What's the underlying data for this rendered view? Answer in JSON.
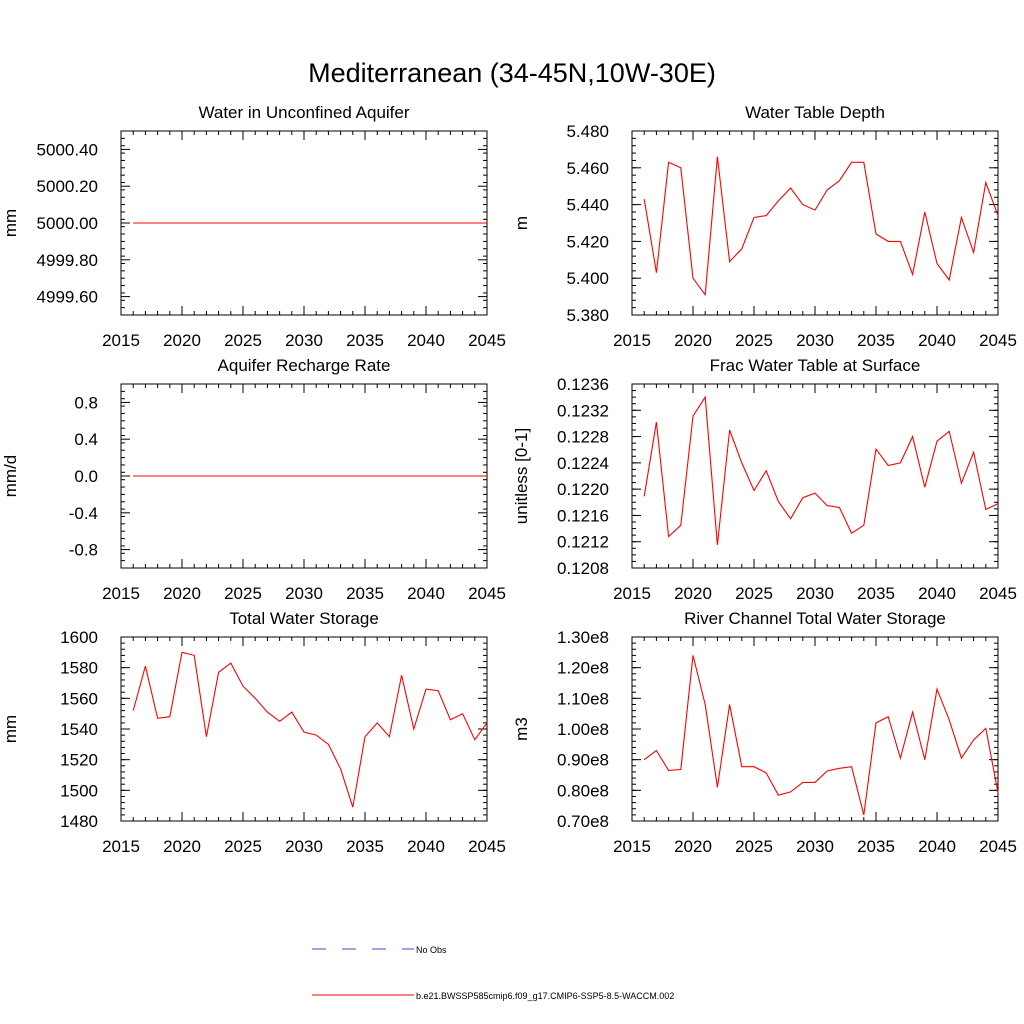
{
  "figure": {
    "title": "Mediterranean (34-45N,10W-30E)"
  },
  "legend": {
    "entries": [
      {
        "label": "No Obs",
        "color": "#3a4fc4",
        "style": "dashed"
      },
      {
        "label": "b.e21.BWSSP585cmip6.f09_g17.CMIP6-SSP5-8.5-WACCM.002",
        "color": "#ff0000",
        "style": "solid"
      }
    ]
  },
  "chart_data": [
    {
      "type": "line",
      "title": "Water in Unconfined Aquifer",
      "ylabel": "mm",
      "xlim": [
        2015,
        2045
      ],
      "ylim": [
        4999.5,
        5000.5
      ],
      "xticks": [
        2015,
        2020,
        2025,
        2030,
        2035,
        2040,
        2045
      ],
      "yticks": [
        4999.6,
        4999.8,
        5000.0,
        5000.2,
        5000.4
      ],
      "ytick_labels": [
        "4999.60",
        "4999.80",
        "5000.00",
        "5000.20",
        "5000.40"
      ],
      "minor_ystep": 0.04,
      "series": [
        {
          "color": "#ff0000",
          "x": [
            2016,
            2045
          ],
          "values": [
            5000.0,
            5000.0
          ]
        }
      ]
    },
    {
      "type": "line",
      "title": "Water Table Depth",
      "ylabel": "m",
      "xlim": [
        2015,
        2045
      ],
      "ylim": [
        5.38,
        5.48
      ],
      "xticks": [
        2015,
        2020,
        2025,
        2030,
        2035,
        2040,
        2045
      ],
      "yticks": [
        5.38,
        5.4,
        5.42,
        5.44,
        5.46,
        5.48
      ],
      "ytick_labels": [
        "5.380",
        "5.400",
        "5.420",
        "5.440",
        "5.460",
        "5.480"
      ],
      "minor_ystep": 0.004,
      "series": [
        {
          "color": "#ff0000",
          "x": [
            2016,
            2017,
            2018,
            2019,
            2020,
            2021,
            2022,
            2023,
            2024,
            2025,
            2026,
            2027,
            2028,
            2029,
            2030,
            2031,
            2032,
            2033,
            2034,
            2035,
            2036,
            2037,
            2038,
            2039,
            2040,
            2041,
            2042,
            2043,
            2044,
            2045
          ],
          "values": [
            5.443,
            5.403,
            5.463,
            5.46,
            5.4,
            5.391,
            5.466,
            5.409,
            5.416,
            5.433,
            5.434,
            5.442,
            5.449,
            5.44,
            5.437,
            5.448,
            5.453,
            5.463,
            5.463,
            5.424,
            5.42,
            5.42,
            5.402,
            5.436,
            5.408,
            5.399,
            5.433,
            5.414,
            5.452,
            5.434
          ]
        }
      ]
    },
    {
      "type": "line",
      "title": "Aquifer Recharge Rate",
      "ylabel": "mm/d",
      "xlim": [
        2015,
        2045
      ],
      "ylim": [
        -1.0,
        1.0
      ],
      "xticks": [
        2015,
        2020,
        2025,
        2030,
        2035,
        2040,
        2045
      ],
      "yticks": [
        -0.8,
        -0.4,
        0.0,
        0.4,
        0.8
      ],
      "ytick_labels": [
        "-0.8",
        "-0.4",
        "0.0",
        "0.4",
        "0.8"
      ],
      "minor_ystep": 0.08,
      "series": [
        {
          "color": "#ff0000",
          "x": [
            2016,
            2045
          ],
          "values": [
            0.0,
            0.0
          ]
        }
      ]
    },
    {
      "type": "line",
      "title": "Frac Water Table at Surface",
      "ylabel": "unitless [0-1]",
      "xlim": [
        2015,
        2045
      ],
      "ylim": [
        0.1208,
        0.1236
      ],
      "xticks": [
        2015,
        2020,
        2025,
        2030,
        2035,
        2040,
        2045
      ],
      "yticks": [
        0.1208,
        0.1212,
        0.1216,
        0.122,
        0.1224,
        0.1228,
        0.1232,
        0.1236
      ],
      "ytick_labels": [
        "0.1208",
        "0.1212",
        "0.1216",
        "0.1220",
        "0.1224",
        "0.1228",
        "0.1232",
        "0.1236"
      ],
      "minor_ystep": 0.0001,
      "series": [
        {
          "color": "#ff0000",
          "x": [
            2016,
            2017,
            2018,
            2019,
            2020,
            2021,
            2022,
            2023,
            2024,
            2025,
            2026,
            2027,
            2028,
            2029,
            2030,
            2031,
            2032,
            2033,
            2034,
            2035,
            2036,
            2037,
            2038,
            2039,
            2040,
            2041,
            2042,
            2043,
            2044,
            2045
          ],
          "values": [
            0.12189,
            0.12302,
            0.12128,
            0.12145,
            0.12311,
            0.1234,
            0.12115,
            0.1229,
            0.1224,
            0.12198,
            0.12228,
            0.12181,
            0.12155,
            0.12187,
            0.12194,
            0.12175,
            0.12172,
            0.12133,
            0.12145,
            0.12261,
            0.12236,
            0.1224,
            0.1228,
            0.12203,
            0.12273,
            0.12288,
            0.12209,
            0.12256,
            0.12169,
            0.12178
          ]
        }
      ]
    },
    {
      "type": "line",
      "title": "Total Water Storage",
      "ylabel": "mm",
      "xlim": [
        2015,
        2045
      ],
      "ylim": [
        1480,
        1600
      ],
      "xticks": [
        2015,
        2020,
        2025,
        2030,
        2035,
        2040,
        2045
      ],
      "yticks": [
        1480,
        1500,
        1520,
        1540,
        1560,
        1580,
        1600
      ],
      "ytick_labels": [
        "1480",
        "1500",
        "1520",
        "1540",
        "1560",
        "1580",
        "1600"
      ],
      "minor_ystep": 4,
      "series": [
        {
          "color": "#ff0000",
          "x": [
            2016,
            2017,
            2018,
            2019,
            2020,
            2021,
            2022,
            2023,
            2024,
            2025,
            2026,
            2027,
            2028,
            2029,
            2030,
            2031,
            2032,
            2033,
            2034,
            2035,
            2036,
            2037,
            2038,
            2039,
            2040,
            2041,
            2042,
            2043,
            2044,
            2045
          ],
          "values": [
            1552,
            1581,
            1547,
            1548,
            1590,
            1588,
            1535,
            1577,
            1583,
            1568,
            1560,
            1551,
            1545,
            1551,
            1538,
            1536,
            1530,
            1514,
            1489,
            1535,
            1544,
            1535,
            1575,
            1540,
            1566,
            1565,
            1546,
            1550,
            1533,
            1544
          ]
        }
      ]
    },
    {
      "type": "line",
      "title": "River Channel Total Water Storage",
      "ylabel": "m3",
      "xlim": [
        2015,
        2045
      ],
      "ylim": [
        70000000,
        130000000
      ],
      "xticks": [
        2015,
        2020,
        2025,
        2030,
        2035,
        2040,
        2045
      ],
      "yticks": [
        70000000,
        80000000,
        90000000,
        100000000,
        110000000,
        120000000,
        130000000
      ],
      "ytick_labels": [
        "0.70e8",
        "0.80e8",
        "0.90e8",
        "1.00e8",
        "1.10e8",
        "1.20e8",
        "1.30e8"
      ],
      "minor_ystep": 2000000,
      "series": [
        {
          "color": "#ff0000",
          "x": [
            2016,
            2017,
            2018,
            2019,
            2020,
            2021,
            2022,
            2023,
            2024,
            2025,
            2026,
            2027,
            2028,
            2029,
            2030,
            2031,
            2032,
            2033,
            2034,
            2035,
            2036,
            2037,
            2038,
            2039,
            2040,
            2041,
            2042,
            2043,
            2044,
            2045
          ],
          "values": [
            90000000,
            93000000,
            86500000,
            86800000,
            124000000,
            108000000,
            81000000,
            108000000,
            87700000,
            87700000,
            85700000,
            78400000,
            79500000,
            82600000,
            82600000,
            86300000,
            87200000,
            87700000,
            72000000,
            102000000,
            104000000,
            90500000,
            105500000,
            90000000,
            113000000,
            103000000,
            90500000,
            96400000,
            100200000,
            79200000
          ]
        }
      ]
    }
  ]
}
